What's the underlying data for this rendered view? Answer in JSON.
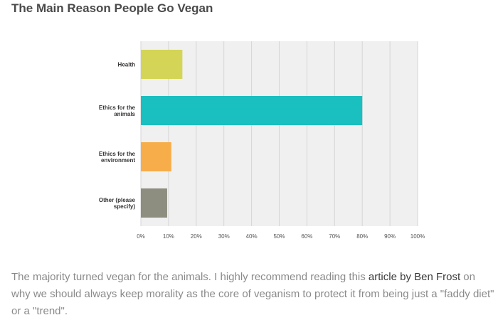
{
  "page": {
    "title": "The Main Reason People Go Vegan",
    "paragraph_start": "The majority turned vegan for the animals. I highly recommend reading this ",
    "link_text": "article by Ben Frost",
    "paragraph_end": " on why we should always keep morality as the core of veganism to protect it from being just a \"faddy diet\" or a \"trend\"."
  },
  "chart_data": {
    "type": "bar",
    "orientation": "horizontal",
    "title": "",
    "xlabel": "",
    "ylabel": "",
    "categories": [
      [
        "Health"
      ],
      [
        "Ethics for the",
        "animals"
      ],
      [
        "Ethics for the",
        "environment"
      ],
      [
        "Other (please",
        "specify)"
      ]
    ],
    "values": [
      15,
      80,
      11,
      9.5
    ],
    "colors": [
      "#d4d556",
      "#1abfbf",
      "#f7ad4a",
      "#8e8e80"
    ],
    "xlim": [
      0,
      100
    ],
    "xticks": [
      "0%",
      "10%",
      "20%",
      "30%",
      "40%",
      "50%",
      "60%",
      "70%",
      "80%",
      "90%",
      "100%"
    ],
    "grid": true,
    "legend": "none"
  }
}
